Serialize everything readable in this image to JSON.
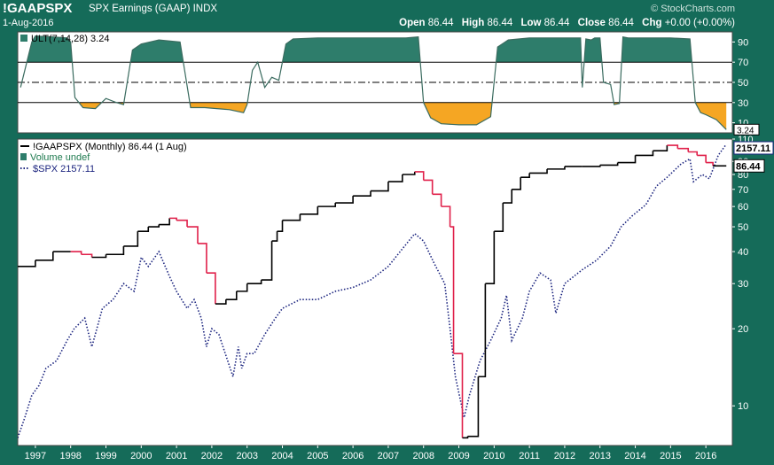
{
  "header": {
    "symbol": "!GAAPSPX",
    "description": "SPX Earnings (GAAP)",
    "exchange": "INDX",
    "watermark": "© StockCharts.com",
    "date": "1-Aug-2016",
    "open_label": "Open",
    "open": "86.44",
    "high_label": "High",
    "high": "86.44",
    "low_label": "Low",
    "low": "86.44",
    "close_label": "Close",
    "close": "86.44",
    "chg_label": "Chg",
    "chg": "+0.00 (+0.00%)"
  },
  "colors": {
    "background": "#156b59",
    "panel": "#ffffff",
    "osc_fill_upper": "#2e7d6b",
    "osc_fill_lower": "#f5a623",
    "earnings_up": "#000000",
    "earnings_down": "#e0204a",
    "spx": "#1a237e"
  },
  "chart_data": [
    {
      "type": "line",
      "title": "ULT(7,14,28) 3.24",
      "indicator": "ULT(7,14,28)",
      "last_value": "3.24",
      "ylim": [
        0,
        100
      ],
      "y_ticks": [
        10,
        30,
        50,
        70,
        90
      ],
      "reference_lines": [
        70,
        50,
        30
      ],
      "x": [
        1996.58,
        1996.9,
        1997.0,
        1997.5,
        1997.9,
        1998.0,
        1998.12,
        1998.35,
        1998.7,
        1999.0,
        1999.3,
        1999.5,
        1999.75,
        2000.0,
        2000.5,
        2001.1,
        2001.4,
        2001.8,
        2002.5,
        2002.9,
        2003.0,
        2003.15,
        2003.3,
        2003.5,
        2003.7,
        2003.9,
        2004.1,
        2004.3,
        2005.0,
        2006.0,
        2007.0,
        2007.5,
        2007.85,
        2008.0,
        2008.2,
        2008.5,
        2009.0,
        2009.5,
        2009.9,
        2010.1,
        2010.4,
        2011.0,
        2011.6,
        2012.0,
        2012.45,
        2012.5,
        2012.6,
        2012.75,
        2012.85,
        2013.0,
        2013.1,
        2013.3,
        2013.4,
        2013.55,
        2013.65,
        2013.8,
        2014.0,
        2015.0,
        2015.55,
        2015.7,
        2015.85,
        2016.0,
        2016.3,
        2016.58
      ],
      "values": [
        45,
        90,
        96,
        95,
        94,
        90,
        35,
        25,
        24,
        34,
        30,
        28,
        82,
        88,
        92,
        90,
        25,
        25,
        23,
        20,
        28,
        62,
        70,
        45,
        55,
        52,
        88,
        93,
        94,
        94,
        94,
        94,
        95,
        30,
        15,
        9,
        8,
        8,
        16,
        85,
        92,
        94,
        94,
        94,
        94,
        45,
        93,
        92,
        94,
        94,
        50,
        48,
        28,
        29,
        95,
        94,
        94,
        94,
        93,
        30,
        20,
        18,
        13,
        3.24
      ]
    },
    {
      "type": "line",
      "title": "!GAAPSPX (Monthly) 86.44 (1 Aug)",
      "y_scale": "log",
      "ylim": [
        7,
        110
      ],
      "y_ticks": [
        10,
        20,
        30,
        40,
        50,
        60,
        70,
        80,
        90,
        110
      ],
      "x_ticks": [
        "1997",
        "1998",
        "1999",
        "2000",
        "2001",
        "2002",
        "2003",
        "2004",
        "2005",
        "2006",
        "2007",
        "2008",
        "2009",
        "2010",
        "2011",
        "2012",
        "2013",
        "2014",
        "2015",
        "2016"
      ],
      "last_values": {
        "spx": "2157.11",
        "earnings": "86.44"
      },
      "series": [
        {
          "name": "!GAAPSPX (Monthly) 86.44 (1 Aug)",
          "style": "step",
          "x": [
            1996.5,
            1997.0,
            1997.5,
            1998.0,
            1998.3,
            1998.6,
            1999.0,
            1999.5,
            1999.9,
            2000.2,
            2000.5,
            2000.8,
            2001.0,
            2001.3,
            2001.6,
            2001.85,
            2002.1,
            2002.4,
            2002.7,
            2003.0,
            2003.4,
            2003.7,
            2003.85,
            2004.0,
            2004.5,
            2005.0,
            2005.5,
            2006.0,
            2006.5,
            2007.0,
            2007.4,
            2007.75,
            2008.0,
            2008.25,
            2008.5,
            2008.75,
            2008.85,
            2009.1,
            2009.25,
            2009.55,
            2009.75,
            2010.0,
            2010.25,
            2010.5,
            2010.75,
            2011.0,
            2011.5,
            2012.0,
            2012.5,
            2013.0,
            2013.5,
            2014.0,
            2014.5,
            2014.9,
            2015.2,
            2015.5,
            2015.75,
            2016.0,
            2016.2,
            2016.58
          ],
          "values": [
            35,
            37,
            40,
            40,
            39,
            38,
            39,
            42,
            48,
            50,
            51,
            54,
            53,
            50,
            43,
            33,
            25,
            26,
            28,
            30,
            31,
            44,
            48,
            53,
            56,
            60,
            62,
            66,
            69,
            75,
            80,
            82,
            76,
            67,
            60,
            50,
            16,
            7.5,
            7.6,
            13,
            30,
            48,
            62,
            70,
            78,
            81,
            84,
            86,
            86,
            87,
            89,
            95,
            99,
            104,
            101,
            98,
            95,
            89,
            86.44,
            86.44
          ]
        },
        {
          "name": "Volume undef",
          "values": []
        },
        {
          "name": "$SPX 2157.11",
          "style": "dotted",
          "x": [
            1996.5,
            1996.7,
            1996.9,
            1997.1,
            1997.3,
            1997.6,
            1997.9,
            1998.1,
            1998.4,
            1998.6,
            1998.9,
            1999.2,
            1999.5,
            1999.8,
            2000.0,
            2000.2,
            2000.5,
            2000.8,
            2001.0,
            2001.3,
            2001.5,
            2001.7,
            2001.85,
            2002.0,
            2002.2,
            2002.45,
            2002.6,
            2002.75,
            2002.85,
            2003.0,
            2003.2,
            2003.5,
            2003.8,
            2004.0,
            2004.5,
            2005.0,
            2005.5,
            2006.0,
            2006.5,
            2007.0,
            2007.4,
            2007.75,
            2008.0,
            2008.3,
            2008.6,
            2008.75,
            2008.9,
            2009.15,
            2009.3,
            2009.6,
            2009.9,
            2010.2,
            2010.35,
            2010.5,
            2010.8,
            2011.0,
            2011.3,
            2011.6,
            2011.75,
            2012.0,
            2012.5,
            2012.9,
            2013.3,
            2013.6,
            2013.9,
            2014.3,
            2014.6,
            2014.9,
            2015.3,
            2015.55,
            2015.65,
            2015.9,
            2016.1,
            2016.35,
            2016.58
          ],
          "values": [
            7.5,
            9,
            11,
            12,
            14,
            15,
            18,
            20,
            22,
            17,
            24,
            26,
            30,
            28,
            38,
            35,
            40,
            32,
            28,
            24,
            26,
            22,
            17,
            20,
            19,
            15,
            13,
            17,
            14,
            16,
            16,
            19,
            22,
            24,
            26,
            26,
            28,
            29,
            31,
            35,
            41,
            47,
            44,
            36,
            30,
            20,
            13,
            9,
            11,
            15,
            18,
            22,
            27,
            18,
            22,
            28,
            33,
            31,
            23,
            30,
            34,
            37,
            42,
            50,
            55,
            61,
            72,
            78,
            88,
            92,
            75,
            80,
            77,
            95,
            105
          ]
        }
      ]
    }
  ]
}
